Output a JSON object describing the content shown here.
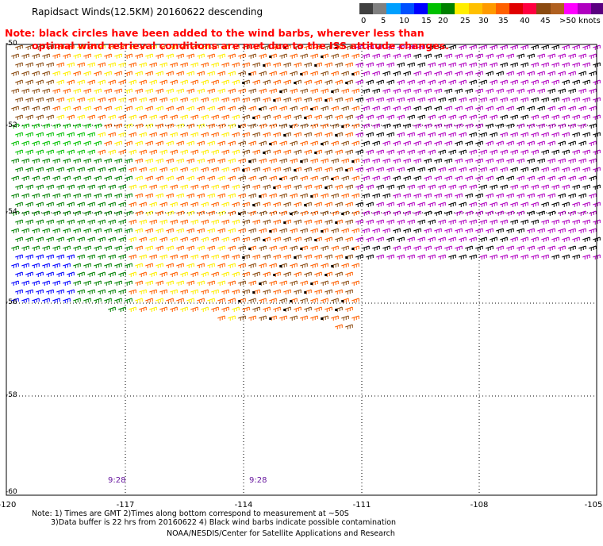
{
  "header": {
    "title": "Rapidsact Winds(12.5KM) 20160622 descending"
  },
  "legend": {
    "colors": [
      "#404040",
      "#808080",
      "#00a0ff",
      "#0050ff",
      "#0000ff",
      "#00c000",
      "#008000",
      "#ffee00",
      "#ffc000",
      "#ff9a00",
      "#ff6000",
      "#e00000",
      "#ff0040",
      "#8a4a10",
      "#b06020",
      "#ff00ff",
      "#b000c0",
      "#5a0080"
    ],
    "tick_labels": [
      "0",
      "5",
      "10",
      "15",
      "20",
      "25",
      "30",
      "35",
      "40",
      "45",
      ">50 knots"
    ]
  },
  "note": {
    "line1": "Note: black circles have been added to the wind barbs, wherever less than",
    "line2": "optimal wind retrieval conditions are met due to the ISS attitude changes."
  },
  "map": {
    "lon_labels": [
      "-120",
      "-117",
      "-114",
      "-111",
      "-108",
      "-105"
    ],
    "lat_labels": [
      "-50",
      "-52",
      "-54",
      "-56",
      "-58",
      "-60"
    ],
    "time_labels": [
      "9:28",
      "9:28"
    ]
  },
  "footer": {
    "line1": "Note: 1) Times are GMT 2)Times along bottom correspond to measurement at ~50S",
    "line2": "3)Data buffer is 22 hrs from 20160622 4) Black wind barbs indicate possible contamination",
    "line3": "NOAA/NESDIS/Center for Satellite Applications and Research"
  }
}
